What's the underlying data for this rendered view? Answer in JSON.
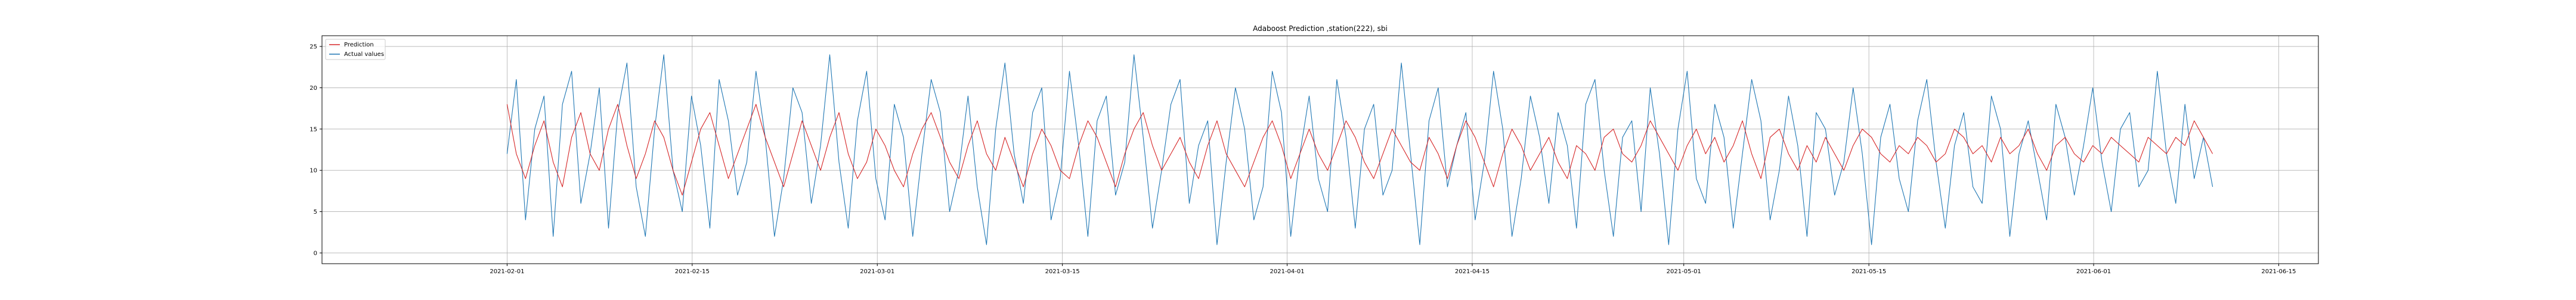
{
  "chart_data": {
    "type": "line",
    "title": "Adaboost Prediction ,station(222), sbi",
    "xlabel": "",
    "ylabel": "",
    "x_start": "2021-02-01",
    "x_end": "2021-06-10",
    "xlim": [
      "2021-01-18",
      "2021-06-18"
    ],
    "ylim": [
      -1.3,
      26.3
    ],
    "x_ticks": [
      "2021-02-01",
      "2021-02-15",
      "2021-03-01",
      "2021-03-15",
      "2021-04-01",
      "2021-04-15",
      "2021-05-01",
      "2021-05-15",
      "2021-06-01",
      "2021-06-15"
    ],
    "y_ticks": [
      0,
      5,
      10,
      15,
      20,
      25
    ],
    "grid": true,
    "legend_position": "top-left",
    "series": [
      {
        "name": "Prediction",
        "color": "#d62728",
        "values": [
          18,
          12,
          9,
          13,
          16,
          11,
          8,
          14,
          17,
          12,
          10,
          15,
          18,
          13,
          9,
          12,
          16,
          14,
          10,
          7,
          11,
          15,
          17,
          13,
          9,
          12,
          15,
          18,
          14,
          11,
          8,
          12,
          16,
          13,
          10,
          14,
          17,
          12,
          9,
          11,
          15,
          13,
          10,
          8,
          12,
          15,
          17,
          14,
          11,
          9,
          13,
          16,
          12,
          10,
          14,
          11,
          8,
          12,
          15,
          13,
          10,
          9,
          13,
          16,
          14,
          11,
          8,
          12,
          15,
          17,
          13,
          10,
          12,
          14,
          11,
          9,
          13,
          16,
          12,
          10,
          8,
          11,
          14,
          16,
          13,
          9,
          12,
          15,
          12,
          10,
          13,
          16,
          14,
          11,
          9,
          12,
          15,
          13,
          11,
          10,
          14,
          12,
          9,
          13,
          16,
          14,
          11,
          8,
          12,
          15,
          13,
          10,
          12,
          14,
          11,
          9,
          13,
          12,
          10,
          14,
          15,
          12,
          11,
          13,
          16,
          14,
          12,
          10,
          13,
          15,
          12,
          14,
          11,
          13,
          16,
          12,
          9,
          14,
          15,
          12,
          10,
          13,
          11,
          14,
          12,
          10,
          13,
          15,
          14,
          12,
          11,
          13,
          12,
          14,
          13,
          11,
          12,
          15,
          14,
          12,
          13,
          11,
          14,
          12,
          13,
          15,
          12,
          10,
          13,
          14,
          12,
          11,
          13,
          12,
          14,
          13,
          12,
          11,
          14,
          13,
          12,
          14,
          13,
          16,
          14,
          12
        ]
      },
      {
        "name": "Actual values",
        "color": "#1f77b4",
        "values": [
          12,
          21,
          4,
          15,
          19,
          2,
          18,
          22,
          6,
          12,
          20,
          3,
          17,
          23,
          8,
          2,
          15,
          24,
          10,
          5,
          19,
          13,
          3,
          21,
          16,
          7,
          11,
          22,
          14,
          2,
          9,
          20,
          17,
          6,
          13,
          24,
          11,
          3,
          16,
          22,
          9,
          4,
          18,
          14,
          2,
          12,
          21,
          17,
          5,
          10,
          19,
          8,
          1,
          15,
          23,
          12,
          6,
          17,
          20,
          4,
          9,
          22,
          13,
          2,
          16,
          19,
          7,
          11,
          24,
          14,
          3,
          10,
          18,
          21,
          6,
          13,
          16,
          1,
          11,
          20,
          15,
          4,
          8,
          22,
          17,
          2,
          12,
          19,
          9,
          5,
          21,
          14,
          3,
          15,
          18,
          7,
          10,
          23,
          12,
          1,
          16,
          20,
          8,
          13,
          17,
          4,
          11,
          22,
          15,
          2,
          9,
          19,
          14,
          6,
          17,
          13,
          3,
          18,
          21,
          10,
          2,
          14,
          16,
          5,
          20,
          12,
          1,
          15,
          22,
          9,
          6,
          18,
          14,
          3,
          12,
          21,
          16,
          4,
          10,
          19,
          13,
          2,
          17,
          15,
          7,
          11,
          20,
          12,
          1,
          14,
          18,
          9,
          5,
          16,
          21,
          11,
          3,
          13,
          17,
          8,
          6,
          19,
          15,
          2,
          12,
          16,
          10,
          4,
          18,
          14,
          7,
          13,
          20,
          11,
          5,
          15,
          17,
          8,
          10,
          22,
          12,
          6,
          18,
          9,
          14,
          8
        ]
      }
    ]
  }
}
